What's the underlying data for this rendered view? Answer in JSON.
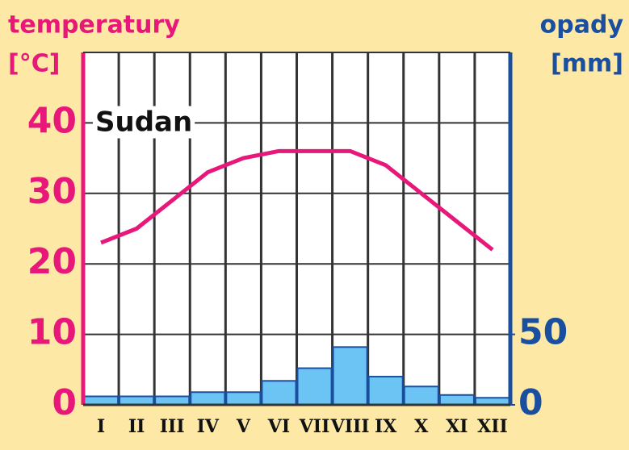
{
  "chart_data": {
    "type": "combo",
    "title": "Sudan",
    "y_label": "temperatury",
    "y_unit": "[°C]",
    "y2_label": "opady",
    "y2_unit": "[mm]",
    "categories": [
      "I",
      "II",
      "III",
      "IV",
      "V",
      "VI",
      "VII",
      "VIII",
      "IX",
      "X",
      "XI",
      "XII"
    ],
    "series": [
      {
        "name": "opady",
        "type": "bar",
        "axis": "y2",
        "color": "#6cc4f5",
        "edge": "#1a4fa0",
        "values": [
          6,
          6,
          6,
          9,
          9,
          17,
          26,
          41,
          20,
          13,
          7,
          5
        ]
      },
      {
        "name": "temperatury",
        "type": "line",
        "axis": "y",
        "color": "#e8187a",
        "values": [
          23,
          25,
          29,
          33,
          35,
          36,
          36,
          36,
          34,
          30,
          26,
          22
        ]
      }
    ],
    "ylim": [
      0,
      50
    ],
    "yticks": [
      0,
      10,
      20,
      30,
      40
    ],
    "y2lim": [
      0,
      250
    ],
    "y2ticks": [
      0,
      50
    ],
    "grid": true
  }
}
